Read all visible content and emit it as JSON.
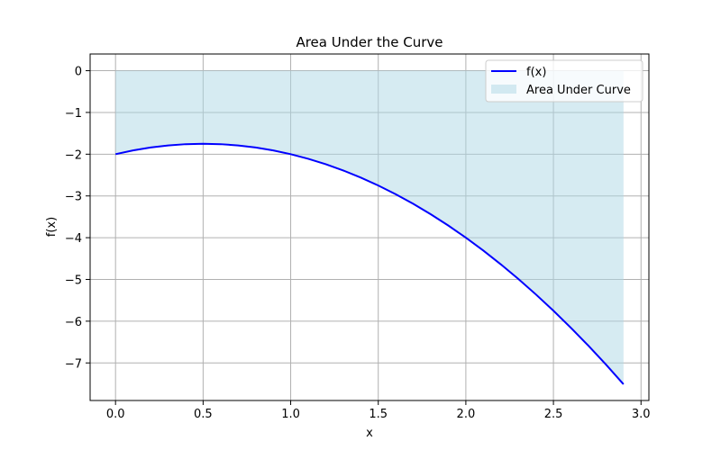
{
  "chart_data": {
    "type": "line",
    "title": "Area Under the Curve",
    "xlabel": "x",
    "ylabel": "f(x)",
    "xlim": [
      -0.145,
      3.045
    ],
    "ylim": [
      -7.9,
      0.4
    ],
    "grid": true,
    "legend_position": "top-right",
    "x_ticks": [
      0.0,
      0.5,
      1.0,
      1.5,
      2.0,
      2.5,
      3.0
    ],
    "x_tick_labels": [
      "0.0",
      "0.5",
      "1.0",
      "1.5",
      "2.0",
      "2.5",
      "3.0"
    ],
    "y_ticks": [
      0,
      -1,
      -2,
      -3,
      -4,
      -5,
      -6,
      -7
    ],
    "y_tick_labels": [
      "0",
      "−1",
      "−2",
      "−3",
      "−4",
      "−5",
      "−6",
      "−7"
    ],
    "series": [
      {
        "name": "f(x)",
        "color": "#0000ff",
        "x": [
          0.0,
          0.1,
          0.2,
          0.3,
          0.4,
          0.5,
          0.6,
          0.7,
          0.8,
          0.9,
          1.0,
          1.1,
          1.2,
          1.3,
          1.4,
          1.5,
          1.6,
          1.7,
          1.8,
          1.9,
          2.0,
          2.1,
          2.2,
          2.3,
          2.4,
          2.5,
          2.6,
          2.7,
          2.8,
          2.9
        ],
        "y": [
          -2.0,
          -1.91,
          -1.84,
          -1.79,
          -1.76,
          -1.75,
          -1.76,
          -1.79,
          -1.84,
          -1.91,
          -2.0,
          -2.11,
          -2.24,
          -2.39,
          -2.56,
          -2.75,
          -2.96,
          -3.19,
          -3.44,
          -3.71,
          -4.0,
          -4.31,
          -4.64,
          -4.99,
          -5.36,
          -5.75,
          -6.16,
          -6.59,
          -7.04,
          -7.51
        ]
      }
    ],
    "area": {
      "name": "Area Under Curve",
      "color": "#add8e6",
      "opacity": 0.5,
      "between": [
        0,
        "f(x)"
      ]
    }
  }
}
